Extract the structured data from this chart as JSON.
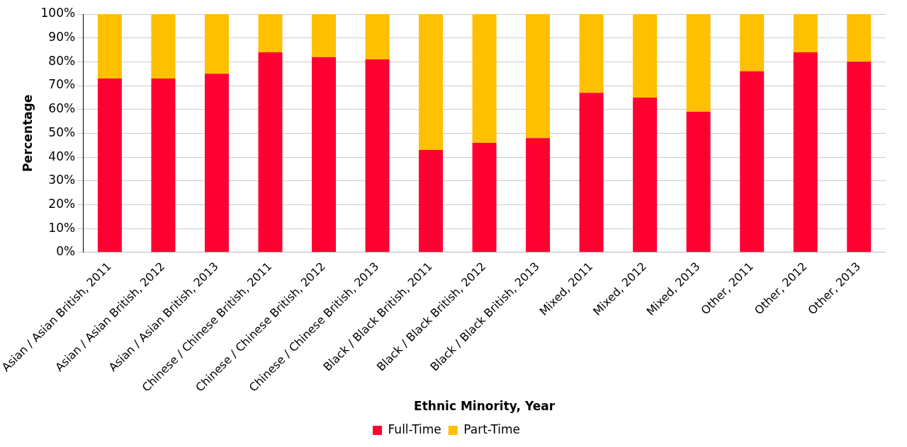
{
  "chart_data": {
    "type": "bar",
    "stacked": true,
    "xlabel": "Ethnic Minority, Year",
    "ylabel": "Percentage",
    "categories": [
      "Asian / Asian British, 2011",
      "Asian / Asian British, 2012",
      "Asian / Asian British, 2013",
      "Chinese / Chinese British, 2011",
      "Chinese / Chinese British, 2012",
      "Chinese / Chinese British, 2013",
      "Black / Black British, 2011",
      "Black / Black British, 2012",
      "Black / Black British, 2013",
      "Mixed, 2011",
      "Mixed, 2012",
      "Mixed, 2013",
      "Other, 2011",
      "Other, 2012",
      "Other, 2013"
    ],
    "series": [
      {
        "name": "Full-Time",
        "color": "#ff0033",
        "values": [
          73,
          73,
          75,
          84,
          82,
          81,
          43,
          46,
          48,
          67,
          65,
          59,
          76,
          84,
          80
        ]
      },
      {
        "name": "Part-Time",
        "color": "#ffc000",
        "values": [
          27,
          27,
          25,
          16,
          18,
          19,
          57,
          54,
          52,
          33,
          35,
          41,
          24,
          16,
          20
        ]
      }
    ],
    "ylim": [
      0,
      100
    ],
    "yticks": [
      {
        "value": 0,
        "label": "0%"
      },
      {
        "value": 10,
        "label": "10%"
      },
      {
        "value": 20,
        "label": "20%"
      },
      {
        "value": 30,
        "label": "30%"
      },
      {
        "value": 40,
        "label": "40%"
      },
      {
        "value": 50,
        "label": "50%"
      },
      {
        "value": 60,
        "label": "60%"
      },
      {
        "value": 70,
        "label": "70%"
      },
      {
        "value": 80,
        "label": "80%"
      },
      {
        "value": 90,
        "label": "90%"
      },
      {
        "value": 100,
        "label": "100%"
      }
    ],
    "grid": "y",
    "legend": "bottom"
  }
}
